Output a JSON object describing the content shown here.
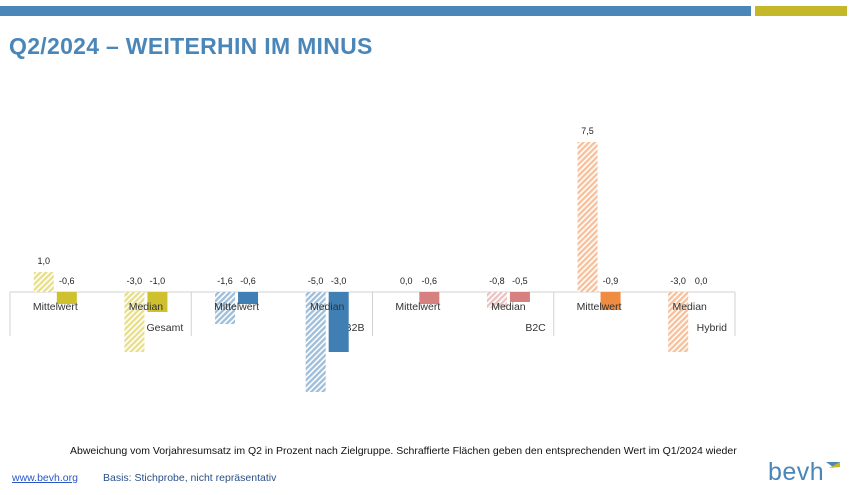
{
  "header": {
    "title": "Q2/2024 – WEITERHIN IM MINUS"
  },
  "footer": {
    "caption": "Abweichung vom Vorjahresumsatz im Q2 in Prozent nach Zielgruppe. Schraffierte Flächen geben den entsprechenden Wert im Q1/2024 wieder",
    "link": "www.bevh.org",
    "basis": "Basis: Stichprobe, nicht repräsentativ",
    "logo": "bevh"
  },
  "chart_data": {
    "type": "bar",
    "title": "",
    "xlabel": "",
    "ylabel": "",
    "ylim": [
      -5.5,
      8.5
    ],
    "groups": [
      {
        "name": "Gesamt",
        "color": "#cfc02e",
        "hatch_color": "#e8df8c",
        "categories": [
          {
            "name": "Mittelwert",
            "q1": 1.0,
            "q2": -0.6,
            "q1_label": "1,0",
            "q2_label": "-0,6"
          },
          {
            "name": "Median",
            "q1": -3.0,
            "q2": -1.0,
            "q1_label": "-3,0",
            "q2_label": "-1,0"
          }
        ]
      },
      {
        "name": "B2B",
        "color": "#3f7fb3",
        "hatch_color": "#9fbfda",
        "categories": [
          {
            "name": "Mittelwert",
            "q1": -1.6,
            "q2": -0.6,
            "q1_label": "-1,6",
            "q2_label": "-0,6"
          },
          {
            "name": "Median",
            "q1": -5.0,
            "q2": -3.0,
            "q1_label": "-5,0",
            "q2_label": "-3,0"
          }
        ]
      },
      {
        "name": "B2C",
        "color": "#d68080",
        "hatch_color": "#ecc3c3",
        "categories": [
          {
            "name": "Mittelwert",
            "q1": 0.0,
            "q2": -0.6,
            "q1_label": "0,0",
            "q2_label": "-0,6"
          },
          {
            "name": "Median",
            "q1": -0.8,
            "q2": -0.5,
            "q1_label": "-0,8",
            "q2_label": "-0,5"
          }
        ]
      },
      {
        "name": "Hybrid",
        "color": "#f08c42",
        "hatch_color": "#f8c19c",
        "categories": [
          {
            "name": "Mittelwert",
            "q1": 7.5,
            "q2": -0.9,
            "q1_label": "7,5",
            "q2_label": "-0,9"
          },
          {
            "name": "Median",
            "q1": -3.0,
            "q2": 0.0,
            "q1_label": "-3,0",
            "q2_label": "0,0"
          }
        ]
      }
    ]
  }
}
